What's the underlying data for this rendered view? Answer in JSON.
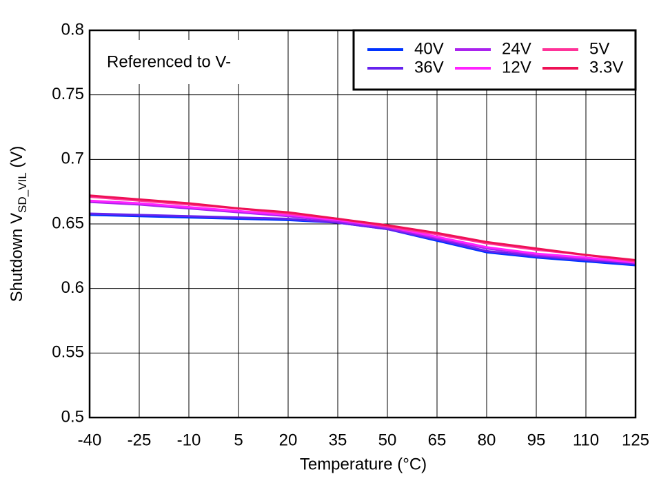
{
  "chart_data": {
    "type": "line",
    "y_label": {
      "text": "Shutdown V",
      "subscript": "SD_VIL",
      "suffix": " (V)"
    },
    "x_label": "Temperature (°C)",
    "annotation": "Referenced to V-",
    "x": [
      -40,
      -25,
      -10,
      5,
      20,
      35,
      50,
      65,
      80,
      95,
      110,
      125
    ],
    "series": [
      {
        "name": "40V",
        "color": "#0033ff",
        "values": [
          0.657,
          0.656,
          0.655,
          0.654,
          0.653,
          0.651,
          0.646,
          0.637,
          0.628,
          0.624,
          0.621,
          0.618
        ]
      },
      {
        "name": "36V",
        "color": "#6622ee",
        "values": [
          0.658,
          0.657,
          0.656,
          0.655,
          0.654,
          0.651,
          0.646,
          0.638,
          0.629,
          0.625,
          0.622,
          0.619
        ]
      },
      {
        "name": "24V",
        "color": "#aa22ee",
        "values": [
          0.667,
          0.665,
          0.662,
          0.659,
          0.656,
          0.652,
          0.647,
          0.639,
          0.631,
          0.626,
          0.623,
          0.62
        ]
      },
      {
        "name": "12V",
        "color": "#ff22ff",
        "values": [
          0.668,
          0.666,
          0.663,
          0.66,
          0.657,
          0.653,
          0.648,
          0.64,
          0.632,
          0.627,
          0.624,
          0.62
        ]
      },
      {
        "name": "5V",
        "color": "#ff3399",
        "values": [
          0.671,
          0.668,
          0.665,
          0.662,
          0.658,
          0.654,
          0.648,
          0.642,
          0.635,
          0.63,
          0.626,
          0.621
        ]
      },
      {
        "name": "3.3V",
        "color": "#ee1155",
        "values": [
          0.672,
          0.669,
          0.666,
          0.662,
          0.659,
          0.654,
          0.649,
          0.643,
          0.636,
          0.631,
          0.626,
          0.622
        ]
      }
    ],
    "xlim": [
      -40,
      125
    ],
    "xticks": [
      -40,
      -25,
      -10,
      5,
      20,
      35,
      50,
      65,
      80,
      95,
      110,
      125
    ],
    "ylim": [
      0.5,
      0.8
    ],
    "yticks": [
      0.5,
      0.55,
      0.6,
      0.65,
      0.7,
      0.75,
      0.8
    ],
    "grid": true,
    "legend": "upper right"
  }
}
